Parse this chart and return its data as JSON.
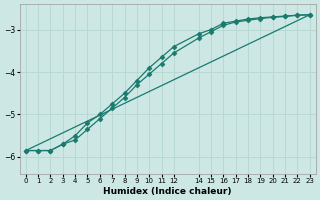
{
  "xlabel": "Humidex (Indice chaleur)",
  "background_color": "#cde8e4",
  "grid_color": "#b8d8d4",
  "line_color": "#1a7a6e",
  "xlim": [
    -0.5,
    23.5
  ],
  "ylim": [
    -6.4,
    -2.4
  ],
  "yticks": [
    -6,
    -5,
    -4,
    -3
  ],
  "xticks": [
    0,
    1,
    2,
    3,
    4,
    5,
    6,
    7,
    8,
    9,
    10,
    11,
    12,
    14,
    15,
    16,
    17,
    18,
    19,
    20,
    21,
    22,
    23
  ],
  "line1_x": [
    0,
    1,
    2,
    3,
    4,
    5,
    6,
    7,
    8,
    9,
    10,
    11,
    12,
    14,
    15,
    16,
    17,
    18,
    19,
    20,
    21,
    22,
    23
  ],
  "line1_y": [
    -5.85,
    -5.85,
    -5.85,
    -5.7,
    -5.5,
    -5.2,
    -5.0,
    -4.75,
    -4.5,
    -4.2,
    -3.9,
    -3.65,
    -3.4,
    -3.1,
    -3.0,
    -2.85,
    -2.8,
    -2.75,
    -2.72,
    -2.7,
    -2.68,
    -2.66,
    -2.65
  ],
  "line2_x": [
    0,
    1,
    2,
    3,
    4,
    5,
    6,
    7,
    8,
    9,
    10,
    11,
    12,
    14,
    15,
    16,
    17,
    18,
    19,
    20,
    21,
    22,
    23
  ],
  "line2_y": [
    -5.85,
    -5.85,
    -5.85,
    -5.7,
    -5.6,
    -5.35,
    -5.1,
    -4.85,
    -4.6,
    -4.3,
    -4.05,
    -3.8,
    -3.55,
    -3.2,
    -3.05,
    -2.9,
    -2.82,
    -2.78,
    -2.74,
    -2.71,
    -2.69,
    -2.66,
    -2.65
  ],
  "line3_x": [
    0,
    23
  ],
  "line3_y": [
    -5.85,
    -2.65
  ]
}
